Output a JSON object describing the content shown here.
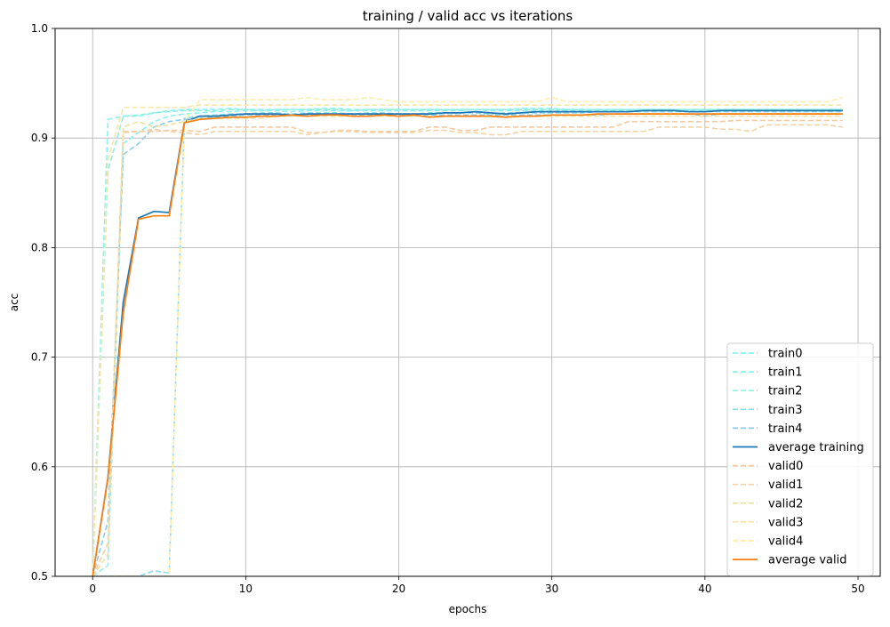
{
  "chart_data": {
    "type": "line",
    "title": "training / valid acc vs iterations",
    "xlabel": "epochs",
    "ylabel": "acc",
    "xlim": [
      -2.45,
      51.45
    ],
    "ylim": [
      0.5,
      1.0
    ],
    "xticks": [
      0,
      10,
      20,
      30,
      40,
      50
    ],
    "yticks": [
      0.5,
      0.6,
      0.7,
      0.8,
      0.9,
      1.0
    ],
    "xtick_labels": [
      "0",
      "10",
      "20",
      "30",
      "40",
      "50"
    ],
    "ytick_labels": [
      "0.5",
      "0.6",
      "0.7",
      "0.8",
      "0.9",
      "1.0"
    ],
    "grid": true,
    "legend_position": "lower-right",
    "series": [
      {
        "name": "train0",
        "color": "#88f2f2",
        "style": "dashed",
        "values": [
          0.5,
          0.917,
          0.92,
          0.92,
          0.923,
          0.925,
          0.926,
          0.926,
          0.926,
          0.927,
          0.926,
          0.926,
          0.926,
          0.926,
          0.926,
          0.927,
          0.927,
          0.926,
          0.926,
          0.926,
          0.926,
          0.926,
          0.926,
          0.926,
          0.926,
          0.926,
          0.926,
          0.926,
          0.927,
          0.927,
          0.927,
          0.926,
          0.926,
          0.926,
          0.926,
          0.926,
          0.926,
          0.926,
          0.926,
          0.926,
          0.926,
          0.926,
          0.926,
          0.926,
          0.926,
          0.926,
          0.926,
          0.926,
          0.926,
          0.926
        ]
      },
      {
        "name": "train1",
        "color": "#8ef0ee",
        "style": "dashed",
        "values": [
          0.5,
          0.51,
          0.895,
          0.905,
          0.915,
          0.92,
          0.922,
          0.923,
          0.924,
          0.924,
          0.925,
          0.925,
          0.925,
          0.924,
          0.925,
          0.925,
          0.925,
          0.925,
          0.925,
          0.925,
          0.925,
          0.925,
          0.925,
          0.925,
          0.925,
          0.926,
          0.925,
          0.925,
          0.925,
          0.925,
          0.925,
          0.925,
          0.925,
          0.925,
          0.925,
          0.925,
          0.925,
          0.925,
          0.925,
          0.925,
          0.925,
          0.925,
          0.925,
          0.925,
          0.925,
          0.925,
          0.925,
          0.925,
          0.925,
          0.925
        ]
      },
      {
        "name": "train2",
        "color": "#94eedd",
        "style": "dashed",
        "values": [
          0.5,
          0.87,
          0.92,
          0.921,
          0.923,
          0.924,
          0.925,
          0.925,
          0.925,
          0.926,
          0.926,
          0.925,
          0.926,
          0.926,
          0.926,
          0.926,
          0.926,
          0.925,
          0.926,
          0.926,
          0.926,
          0.926,
          0.926,
          0.926,
          0.926,
          0.926,
          0.926,
          0.926,
          0.926,
          0.926,
          0.926,
          0.926,
          0.926,
          0.926,
          0.926,
          0.926,
          0.926,
          0.926,
          0.926,
          0.926,
          0.926,
          0.926,
          0.926,
          0.926,
          0.926,
          0.926,
          0.926,
          0.926,
          0.926,
          0.926
        ]
      },
      {
        "name": "train3",
        "color": "#88dcee",
        "style": "dashed",
        "values": [
          0.5,
          0.5,
          0.5,
          0.5,
          0.505,
          0.503,
          0.918,
          0.92,
          0.921,
          0.922,
          0.922,
          0.923,
          0.923,
          0.922,
          0.923,
          0.923,
          0.923,
          0.922,
          0.923,
          0.923,
          0.922,
          0.922,
          0.923,
          0.923,
          0.923,
          0.923,
          0.922,
          0.923,
          0.923,
          0.923,
          0.923,
          0.923,
          0.923,
          0.924,
          0.924,
          0.924,
          0.924,
          0.924,
          0.924,
          0.924,
          0.924,
          0.924,
          0.924,
          0.924,
          0.924,
          0.924,
          0.924,
          0.924,
          0.924,
          0.924
        ]
      },
      {
        "name": "train4",
        "color": "#8ccbe8",
        "style": "dashed",
        "values": [
          0.5,
          0.55,
          0.885,
          0.895,
          0.91,
          0.915,
          0.917,
          0.918,
          0.919,
          0.92,
          0.921,
          0.921,
          0.921,
          0.92,
          0.921,
          0.921,
          0.921,
          0.921,
          0.921,
          0.921,
          0.921,
          0.92,
          0.921,
          0.921,
          0.921,
          0.921,
          0.921,
          0.921,
          0.921,
          0.921,
          0.921,
          0.921,
          0.921,
          0.921,
          0.922,
          0.922,
          0.922,
          0.922,
          0.922,
          0.922,
          0.92,
          0.922,
          0.922,
          0.922,
          0.922,
          0.922,
          0.922,
          0.922,
          0.922,
          0.922
        ]
      },
      {
        "name": "average training",
        "color": "#1f77b4",
        "style": "solid",
        "values": [
          0.5,
          0.59,
          0.75,
          0.827,
          0.833,
          0.832,
          0.915,
          0.92,
          0.92,
          0.921,
          0.922,
          0.922,
          0.922,
          0.921,
          0.922,
          0.922,
          0.922,
          0.922,
          0.922,
          0.922,
          0.922,
          0.922,
          0.922,
          0.923,
          0.923,
          0.924,
          0.923,
          0.922,
          0.923,
          0.924,
          0.924,
          0.924,
          0.924,
          0.924,
          0.924,
          0.924,
          0.925,
          0.925,
          0.925,
          0.924,
          0.924,
          0.925,
          0.925,
          0.925,
          0.925,
          0.925,
          0.925,
          0.925,
          0.925,
          0.925
        ]
      },
      {
        "name": "valid0",
        "color": "#f5c9a0",
        "style": "dashed",
        "values": [
          0.5,
          0.53,
          0.905,
          0.906,
          0.906,
          0.907,
          0.907,
          0.906,
          0.91,
          0.91,
          0.91,
          0.91,
          0.91,
          0.91,
          0.905,
          0.905,
          0.907,
          0.907,
          0.906,
          0.906,
          0.906,
          0.906,
          0.91,
          0.91,
          0.907,
          0.907,
          0.91,
          0.91,
          0.91,
          0.91,
          0.91,
          0.91,
          0.91,
          0.91,
          0.91,
          0.915,
          0.915,
          0.915,
          0.915,
          0.915,
          0.915,
          0.915,
          0.916,
          0.916,
          0.916,
          0.916,
          0.916,
          0.916,
          0.916,
          0.916
        ]
      },
      {
        "name": "valid1",
        "color": "#f3d3a4",
        "style": "dashed",
        "values": [
          0.5,
          0.53,
          0.906,
          0.906,
          0.908,
          0.906,
          0.905,
          0.903,
          0.906,
          0.906,
          0.906,
          0.906,
          0.906,
          0.906,
          0.903,
          0.905,
          0.906,
          0.906,
          0.905,
          0.905,
          0.905,
          0.905,
          0.907,
          0.907,
          0.905,
          0.905,
          0.903,
          0.903,
          0.906,
          0.906,
          0.906,
          0.906,
          0.906,
          0.906,
          0.906,
          0.906,
          0.906,
          0.91,
          0.91,
          0.91,
          0.91,
          0.908,
          0.908,
          0.906,
          0.912,
          0.912,
          0.912,
          0.912,
          0.912,
          0.91
        ]
      },
      {
        "name": "valid2",
        "color": "#f0e0a0",
        "style": "dashed",
        "values": [
          0.5,
          0.52,
          0.91,
          0.915,
          0.91,
          0.912,
          0.915,
          0.918,
          0.918,
          0.918,
          0.918,
          0.918,
          0.92,
          0.92,
          0.92,
          0.92,
          0.92,
          0.92,
          0.92,
          0.92,
          0.92,
          0.92,
          0.92,
          0.92,
          0.92,
          0.92,
          0.92,
          0.92,
          0.92,
          0.92,
          0.92,
          0.92,
          0.92,
          0.92,
          0.92,
          0.92,
          0.92,
          0.92,
          0.92,
          0.92,
          0.92,
          0.92,
          0.92,
          0.92,
          0.92,
          0.92,
          0.92,
          0.92,
          0.92,
          0.92
        ]
      },
      {
        "name": "valid3",
        "color": "#f7e6a8",
        "style": "dashed",
        "values": [
          0.5,
          0.88,
          0.928,
          0.928,
          0.928,
          0.928,
          0.928,
          0.93,
          0.93,
          0.93,
          0.93,
          0.93,
          0.93,
          0.93,
          0.93,
          0.93,
          0.93,
          0.93,
          0.93,
          0.93,
          0.93,
          0.93,
          0.93,
          0.93,
          0.93,
          0.93,
          0.93,
          0.93,
          0.93,
          0.93,
          0.93,
          0.93,
          0.93,
          0.93,
          0.93,
          0.93,
          0.93,
          0.93,
          0.93,
          0.93,
          0.93,
          0.93,
          0.93,
          0.93,
          0.93,
          0.93,
          0.93,
          0.93,
          0.93,
          0.93
        ]
      },
      {
        "name": "valid4",
        "color": "#fbefa8",
        "style": "dashed",
        "values": [
          0.5,
          0.5,
          0.5,
          0.5,
          0.5,
          0.5,
          0.915,
          0.935,
          0.935,
          0.935,
          0.935,
          0.935,
          0.935,
          0.935,
          0.937,
          0.935,
          0.935,
          0.935,
          0.937,
          0.935,
          0.933,
          0.933,
          0.933,
          0.933,
          0.933,
          0.933,
          0.933,
          0.933,
          0.933,
          0.933,
          0.937,
          0.933,
          0.933,
          0.933,
          0.933,
          0.933,
          0.933,
          0.933,
          0.933,
          0.933,
          0.933,
          0.933,
          0.933,
          0.933,
          0.933,
          0.933,
          0.933,
          0.933,
          0.933,
          0.937
        ]
      },
      {
        "name": "average valid",
        "color": "#ff7f0e",
        "style": "solid",
        "values": [
          0.5,
          0.59,
          0.74,
          0.826,
          0.829,
          0.829,
          0.914,
          0.917,
          0.918,
          0.919,
          0.919,
          0.92,
          0.92,
          0.921,
          0.92,
          0.921,
          0.921,
          0.92,
          0.92,
          0.921,
          0.92,
          0.921,
          0.919,
          0.92,
          0.92,
          0.92,
          0.92,
          0.919,
          0.92,
          0.92,
          0.921,
          0.921,
          0.921,
          0.922,
          0.922,
          0.922,
          0.922,
          0.922,
          0.922,
          0.922,
          0.922,
          0.922,
          0.922,
          0.922,
          0.922,
          0.922,
          0.922,
          0.922,
          0.922,
          0.922
        ]
      }
    ]
  }
}
